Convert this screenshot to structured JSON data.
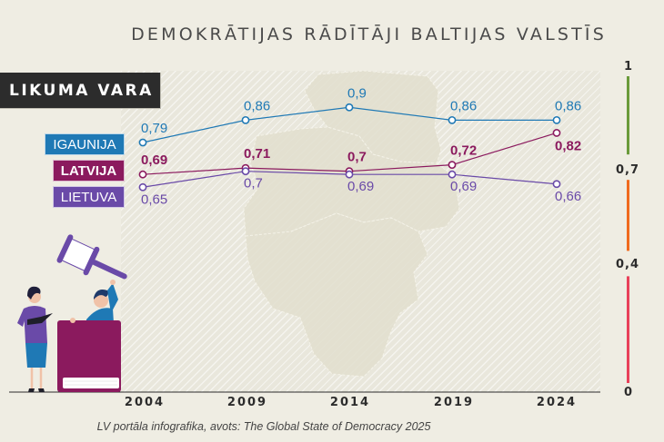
{
  "title": "DEMOKRĀTIJAS RĀDĪTĀJI BALTIJAS VALSTĪS",
  "section_label": "LIKUMA VARA",
  "source": "LV portāla infografika, avots: The Global State of Democracy 2025",
  "illustration": "judge-with-gavel-and-lawyer-with-book",
  "chart_data": {
    "type": "line",
    "title": "DEMOKRĀTIJAS RĀDĪTĀJI BALTIJAS VALSTĪS",
    "subtitle": "LIKUMA VARA",
    "x": [
      "2004",
      "2009",
      "2014",
      "2019",
      "2024"
    ],
    "xlabel": "",
    "ylabel": "",
    "ylim": [
      0,
      1
    ],
    "grid": false,
    "legend_position": "left",
    "series": [
      {
        "name": "IGAUNIJA",
        "color": "#1f79b5",
        "values": [
          0.79,
          0.86,
          0.9,
          0.86,
          0.86
        ],
        "labels": [
          "0,79",
          "0,86",
          "0,9",
          "0,86",
          "0,86"
        ]
      },
      {
        "name": "LATVIJA",
        "color": "#8b1a5e",
        "values": [
          0.69,
          0.71,
          0.7,
          0.72,
          0.82
        ],
        "labels": [
          "0,69",
          "0,71",
          "0,7",
          "0,72",
          "0,82"
        ]
      },
      {
        "name": "LIETUVA",
        "color": "#6a4aa8",
        "values": [
          0.65,
          0.7,
          0.69,
          0.69,
          0.66
        ],
        "labels": [
          "0,65",
          "0,7",
          "0,69",
          "0,69",
          "0,66"
        ]
      }
    ],
    "scale": {
      "labels": [
        "1",
        "0,7",
        "0,4",
        "0"
      ],
      "bands": [
        {
          "from": 0.7,
          "to": 1.0,
          "color": "#6a9a3a"
        },
        {
          "from": 0.4,
          "to": 0.7,
          "color": "#f06a1e"
        },
        {
          "from": 0.0,
          "to": 0.4,
          "color": "#e8405a"
        }
      ]
    }
  }
}
